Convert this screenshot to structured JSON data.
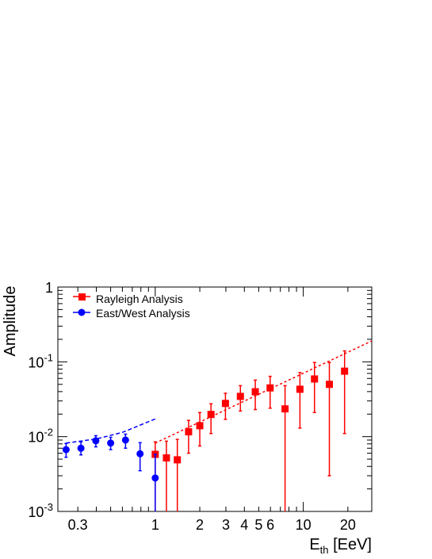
{
  "chart_data": {
    "type": "scatter",
    "x_scale": "log",
    "y_scale": "log",
    "xlim": [
      0.22,
      29
    ],
    "ylim": [
      0.001,
      1
    ],
    "ylabel": "Amplitude",
    "xlabel": {
      "main": "E",
      "sub": "th",
      "unit": " [EeV]"
    },
    "x_ticks": [
      "0.3",
      "1",
      "2",
      "3",
      "4",
      "5",
      "6",
      "10",
      "20"
    ],
    "y_ticks": [
      {
        "base": "10",
        "exp": "-3"
      },
      {
        "base": "10",
        "exp": "-2"
      },
      {
        "base": "10",
        "exp": "-1"
      },
      {
        "base": "1",
        "exp": ""
      }
    ],
    "legend": {
      "position": "top-left",
      "entries": [
        "Rayleigh Analysis",
        "East/West Analysis"
      ]
    },
    "series": [
      {
        "name": "Rayleigh Analysis",
        "marker": "square",
        "color": "#ff0000",
        "points": [
          {
            "x": 1.0,
            "y": 0.0058,
            "lo": 0.001,
            "hi": 0.0085
          },
          {
            "x": 1.19,
            "y": 0.0052,
            "lo": 0.001,
            "hi": 0.0087
          },
          {
            "x": 1.41,
            "y": 0.0049,
            "lo": 0.001,
            "hi": 0.0092
          },
          {
            "x": 1.68,
            "y": 0.0116,
            "lo": 0.006,
            "hi": 0.0165
          },
          {
            "x": 2.0,
            "y": 0.014,
            "lo": 0.0075,
            "hi": 0.021
          },
          {
            "x": 2.38,
            "y": 0.0198,
            "lo": 0.011,
            "hi": 0.0275
          },
          {
            "x": 2.98,
            "y": 0.0278,
            "lo": 0.017,
            "hi": 0.038
          },
          {
            "x": 3.76,
            "y": 0.0345,
            "lo": 0.022,
            "hi": 0.048
          },
          {
            "x": 4.74,
            "y": 0.0398,
            "lo": 0.023,
            "hi": 0.057
          },
          {
            "x": 5.97,
            "y": 0.0448,
            "lo": 0.024,
            "hi": 0.064
          },
          {
            "x": 7.53,
            "y": 0.0235,
            "lo": 0.001,
            "hi": 0.048
          },
          {
            "x": 9.49,
            "y": 0.043,
            "lo": 0.013,
            "hi": 0.072
          },
          {
            "x": 11.9,
            "y": 0.059,
            "lo": 0.021,
            "hi": 0.098
          },
          {
            "x": 15.0,
            "y": 0.05,
            "lo": 0.003,
            "hi": 0.098
          },
          {
            "x": 19.0,
            "y": 0.075,
            "lo": 0.011,
            "hi": 0.14
          }
        ]
      },
      {
        "name": "East/West Analysis",
        "marker": "circle",
        "color": "#0000ff",
        "points": [
          {
            "x": 0.25,
            "y": 0.0067,
            "lo": 0.0053,
            "hi": 0.0081
          },
          {
            "x": 0.315,
            "y": 0.007,
            "lo": 0.0057,
            "hi": 0.0085
          },
          {
            "x": 0.397,
            "y": 0.0088,
            "lo": 0.0073,
            "hi": 0.0103
          },
          {
            "x": 0.5,
            "y": 0.0082,
            "lo": 0.0067,
            "hi": 0.0098
          },
          {
            "x": 0.63,
            "y": 0.009,
            "lo": 0.007,
            "hi": 0.0108
          },
          {
            "x": 0.79,
            "y": 0.0059,
            "lo": 0.0035,
            "hi": 0.0083
          },
          {
            "x": 1.0,
            "y": 0.0028,
            "lo": 0.001,
            "hi": 0.0058
          }
        ]
      }
    ],
    "reference_curves": [
      {
        "color": "#ff0000",
        "style": "dotted",
        "points": [
          [
            1.0,
            0.0082
          ],
          [
            29,
            0.19
          ]
        ]
      },
      {
        "color": "#0000ff",
        "style": "dashed",
        "points": [
          [
            0.25,
            0.0082
          ],
          [
            0.4,
            0.0093
          ],
          [
            0.6,
            0.0114
          ],
          [
            1.0,
            0.0172
          ]
        ]
      }
    ]
  }
}
